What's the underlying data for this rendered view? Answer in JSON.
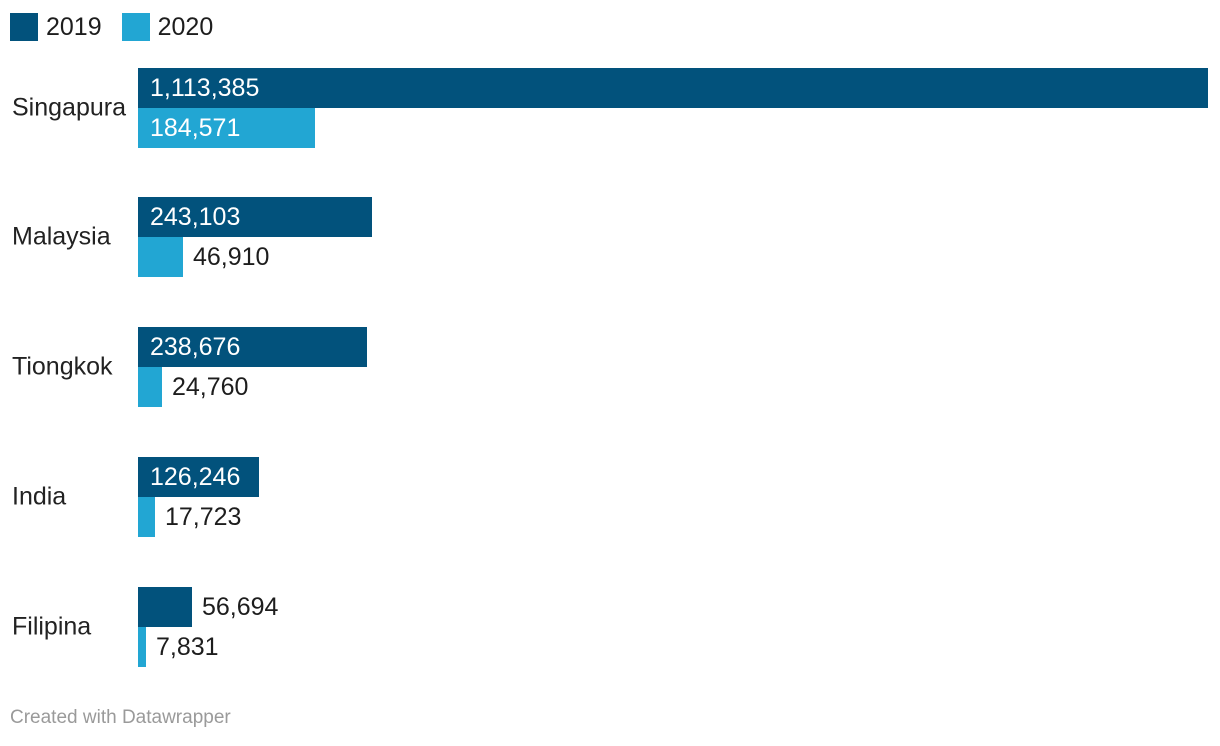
{
  "legend": {
    "items": [
      {
        "label": "2019",
        "color": "#02527c"
      },
      {
        "label": "2020",
        "color": "#22a6d3"
      }
    ]
  },
  "footer": {
    "text": "Created with Datawrapper"
  },
  "chart_data": {
    "type": "bar",
    "orientation": "horizontal",
    "title": "",
    "xlabel": "",
    "ylabel": "",
    "categories": [
      "Singapura",
      "Malaysia",
      "Tiongkok",
      "India",
      "Filipina"
    ],
    "series": [
      {
        "name": "2019",
        "color": "#02527c",
        "values": [
          1113385,
          243103,
          238676,
          126246,
          56694
        ],
        "labels": [
          "1,113,385",
          "243,103",
          "238,676",
          "126,246",
          "56,694"
        ]
      },
      {
        "name": "2020",
        "color": "#22a6d3",
        "values": [
          184571,
          46910,
          24760,
          17723,
          7831
        ],
        "labels": [
          "184,571",
          "46,910",
          "24,760",
          "17,723",
          "7,831"
        ]
      }
    ],
    "xlim": [
      0,
      1113385
    ],
    "grid": false,
    "legend_position": "top-left",
    "value_labels": "inside-or-outside"
  }
}
